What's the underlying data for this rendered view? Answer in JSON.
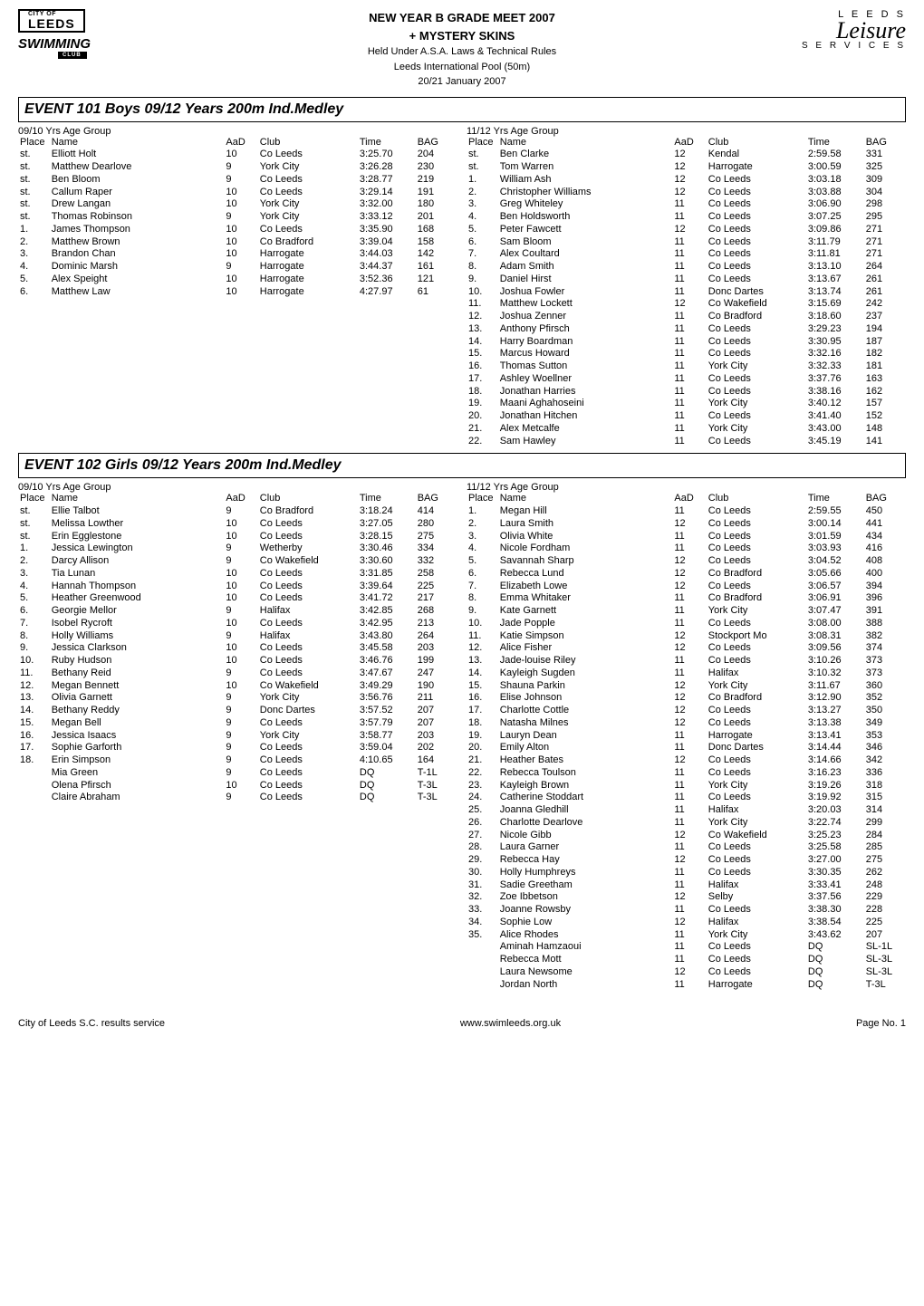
{
  "header": {
    "logo_left": {
      "city": "CITY OF",
      "leeds": "LEEDS",
      "swimming": "SWIMMING",
      "club": "CLUB"
    },
    "title": "NEW YEAR B GRADE MEET 2007",
    "subtitle": "+ MYSTERY SKINS",
    "line1": "Held Under A.S.A. Laws & Technical Rules",
    "line2": "Leeds International Pool (50m)",
    "line3": "20/21 January 2007",
    "logo_right": {
      "leeds": "L E E D S",
      "leisure": "Leisure",
      "services": "S E R V I C E S"
    }
  },
  "events": [
    {
      "title": "EVENT 101 Boys 09/12 Years 200m Ind.Medley",
      "columns": [
        {
          "group": "09/10 Yrs Age Group",
          "headers": {
            "place": "Place",
            "name": "Name",
            "aad": "AaD",
            "club": "Club",
            "time": "Time",
            "bag": "BAG"
          },
          "rows": [
            [
              "st.",
              "Elliott Holt",
              "10",
              "Co Leeds",
              "3:25.70",
              "204"
            ],
            [
              "st.",
              "Matthew Dearlove",
              "9",
              "York City",
              "3:26.28",
              "230"
            ],
            [
              "st.",
              "Ben Bloom",
              "9",
              "Co Leeds",
              "3:28.77",
              "219"
            ],
            [
              "st.",
              "Callum Raper",
              "10",
              "Co Leeds",
              "3:29.14",
              "191"
            ],
            [
              "st.",
              "Drew Langan",
              "10",
              "York City",
              "3:32.00",
              "180"
            ],
            [
              "st.",
              "Thomas Robinson",
              "9",
              "York City",
              "3:33.12",
              "201"
            ],
            [
              "1.",
              "James Thompson",
              "10",
              "Co Leeds",
              "3:35.90",
              "168"
            ],
            [
              "2.",
              "Matthew Brown",
              "10",
              "Co Bradford",
              "3:39.04",
              "158"
            ],
            [
              "3.",
              "Brandon Chan",
              "10",
              "Harrogate",
              "3:44.03",
              "142"
            ],
            [
              "4.",
              "Dominic Marsh",
              "9",
              "Harrogate",
              "3:44.37",
              "161"
            ],
            [
              "5.",
              "Alex Speight",
              "10",
              "Harrogate",
              "3:52.36",
              "121"
            ],
            [
              "6.",
              "Matthew Law",
              "10",
              "Harrogate",
              "4:27.97",
              "61"
            ]
          ]
        },
        {
          "group": "11/12 Yrs Age Group",
          "headers": {
            "place": "Place",
            "name": "Name",
            "aad": "AaD",
            "club": "Club",
            "time": "Time",
            "bag": "BAG"
          },
          "rows": [
            [
              "st.",
              "Ben Clarke",
              "12",
              "Kendal",
              "2:59.58",
              "331"
            ],
            [
              "st.",
              "Tom Warren",
              "12",
              "Harrogate",
              "3:00.59",
              "325"
            ],
            [
              "1.",
              "William Ash",
              "12",
              "Co Leeds",
              "3:03.18",
              "309"
            ],
            [
              "2.",
              "Christopher Williams",
              "12",
              "Co Leeds",
              "3:03.88",
              "304"
            ],
            [
              "3.",
              "Greg Whiteley",
              "11",
              "Co Leeds",
              "3:06.90",
              "298"
            ],
            [
              "4.",
              "Ben Holdsworth",
              "11",
              "Co Leeds",
              "3:07.25",
              "295"
            ],
            [
              "5.",
              "Peter Fawcett",
              "12",
              "Co Leeds",
              "3:09.86",
              "271"
            ],
            [
              "6.",
              "Sam Bloom",
              "11",
              "Co Leeds",
              "3:11.79",
              "271"
            ],
            [
              "7.",
              "Alex Coultard",
              "11",
              "Co Leeds",
              "3:11.81",
              "271"
            ],
            [
              "8.",
              "Adam Smith",
              "11",
              "Co Leeds",
              "3:13.10",
              "264"
            ],
            [
              "9.",
              "Daniel Hirst",
              "11",
              "Co Leeds",
              "3:13.67",
              "261"
            ],
            [
              "10.",
              "Joshua Fowler",
              "11",
              "Donc Dartes",
              "3:13.74",
              "261"
            ],
            [
              "11.",
              "Matthew Lockett",
              "12",
              "Co Wakefield",
              "3:15.69",
              "242"
            ],
            [
              "12.",
              "Joshua Zenner",
              "11",
              "Co Bradford",
              "3:18.60",
              "237"
            ],
            [
              "13.",
              "Anthony Pfirsch",
              "11",
              "Co Leeds",
              "3:29.23",
              "194"
            ],
            [
              "14.",
              "Harry Boardman",
              "11",
              "Co Leeds",
              "3:30.95",
              "187"
            ],
            [
              "15.",
              "Marcus Howard",
              "11",
              "Co Leeds",
              "3:32.16",
              "182"
            ],
            [
              "16.",
              "Thomas Sutton",
              "11",
              "York City",
              "3:32.33",
              "181"
            ],
            [
              "17.",
              "Ashley Woellner",
              "11",
              "Co Leeds",
              "3:37.76",
              "163"
            ],
            [
              "18.",
              "Jonathan Harries",
              "11",
              "Co Leeds",
              "3:38.16",
              "162"
            ],
            [
              "19.",
              "Maani Aghahoseini",
              "11",
              "York City",
              "3:40.12",
              "157"
            ],
            [
              "20.",
              "Jonathan Hitchen",
              "11",
              "Co Leeds",
              "3:41.40",
              "152"
            ],
            [
              "21.",
              "Alex Metcalfe",
              "11",
              "York City",
              "3:43.00",
              "148"
            ],
            [
              "22.",
              "Sam Hawley",
              "11",
              "Co Leeds",
              "3:45.19",
              "141"
            ]
          ]
        }
      ]
    },
    {
      "title": "EVENT 102 Girls 09/12 Years 200m Ind.Medley",
      "columns": [
        {
          "group": "09/10 Yrs Age Group",
          "headers": {
            "place": "Place",
            "name": "Name",
            "aad": "AaD",
            "club": "Club",
            "time": "Time",
            "bag": "BAG"
          },
          "rows": [
            [
              "st.",
              "Ellie Talbot",
              "9",
              "Co Bradford",
              "3:18.24",
              "414"
            ],
            [
              "st.",
              "Melissa Lowther",
              "10",
              "Co Leeds",
              "3:27.05",
              "280"
            ],
            [
              "st.",
              "Erin Egglestone",
              "10",
              "Co Leeds",
              "3:28.15",
              "275"
            ],
            [
              "1.",
              "Jessica Lewington",
              "9",
              "Wetherby",
              "3:30.46",
              "334"
            ],
            [
              "2.",
              "Darcy Allison",
              "9",
              "Co Wakefield",
              "3:30.60",
              "332"
            ],
            [
              "3.",
              "Tia Lunan",
              "10",
              "Co Leeds",
              "3:31.85",
              "258"
            ],
            [
              "4.",
              "Hannah Thompson",
              "10",
              "Co Leeds",
              "3:39.64",
              "225"
            ],
            [
              "5.",
              "Heather Greenwood",
              "10",
              "Co Leeds",
              "3:41.72",
              "217"
            ],
            [
              "6.",
              "Georgie Mellor",
              "9",
              "Halifax",
              "3:42.85",
              "268"
            ],
            [
              "7.",
              "Isobel Rycroft",
              "10",
              "Co Leeds",
              "3:42.95",
              "213"
            ],
            [
              "8.",
              "Holly Williams",
              "9",
              "Halifax",
              "3:43.80",
              "264"
            ],
            [
              "9.",
              "Jessica Clarkson",
              "10",
              "Co Leeds",
              "3:45.58",
              "203"
            ],
            [
              "10.",
              "Ruby Hudson",
              "10",
              "Co Leeds",
              "3:46.76",
              "199"
            ],
            [
              "11.",
              "Bethany Reid",
              "9",
              "Co Leeds",
              "3:47.67",
              "247"
            ],
            [
              "12.",
              "Megan Bennett",
              "10",
              "Co Wakefield",
              "3:49.29",
              "190"
            ],
            [
              "13.",
              "Olivia Garnett",
              "9",
              "York City",
              "3:56.76",
              "211"
            ],
            [
              "14.",
              "Bethany Reddy",
              "9",
              "Donc Dartes",
              "3:57.52",
              "207"
            ],
            [
              "15.",
              "Megan Bell",
              "9",
              "Co Leeds",
              "3:57.79",
              "207"
            ],
            [
              "16.",
              "Jessica Isaacs",
              "9",
              "York City",
              "3:58.77",
              "203"
            ],
            [
              "17.",
              "Sophie Garforth",
              "9",
              "Co Leeds",
              "3:59.04",
              "202"
            ],
            [
              "18.",
              "Erin Simpson",
              "9",
              "Co Leeds",
              "4:10.65",
              "164"
            ],
            [
              "",
              "Mia Green",
              "9",
              "Co Leeds",
              "DQ",
              "T-1L"
            ],
            [
              "",
              "Olena Pfirsch",
              "10",
              "Co Leeds",
              "DQ",
              "T-3L"
            ],
            [
              "",
              "Claire Abraham",
              "9",
              "Co Leeds",
              "DQ",
              "T-3L"
            ]
          ]
        },
        {
          "group": "11/12 Yrs Age Group",
          "headers": {
            "place": "Place",
            "name": "Name",
            "aad": "AaD",
            "club": "Club",
            "time": "Time",
            "bag": "BAG"
          },
          "rows": [
            [
              "1.",
              "Megan Hill",
              "11",
              "Co Leeds",
              "2:59.55",
              "450"
            ],
            [
              "2.",
              "Laura Smith",
              "12",
              "Co Leeds",
              "3:00.14",
              "441"
            ],
            [
              "3.",
              "Olivia White",
              "11",
              "Co Leeds",
              "3:01.59",
              "434"
            ],
            [
              "4.",
              "Nicole Fordham",
              "11",
              "Co Leeds",
              "3:03.93",
              "416"
            ],
            [
              "5.",
              "Savannah Sharp",
              "12",
              "Co Leeds",
              "3:04.52",
              "408"
            ],
            [
              "6.",
              "Rebecca Lund",
              "12",
              "Co Bradford",
              "3:05.66",
              "400"
            ],
            [
              "7.",
              "Elizabeth Lowe",
              "12",
              "Co Leeds",
              "3:06.57",
              "394"
            ],
            [
              "8.",
              "Emma Whitaker",
              "11",
              "Co Bradford",
              "3:06.91",
              "396"
            ],
            [
              "9.",
              "Kate Garnett",
              "11",
              "York City",
              "3:07.47",
              "391"
            ],
            [
              "10.",
              "Jade Popple",
              "11",
              "Co Leeds",
              "3:08.00",
              "388"
            ],
            [
              "11.",
              "Katie Simpson",
              "12",
              "Stockport Mo",
              "3:08.31",
              "382"
            ],
            [
              "12.",
              "Alice Fisher",
              "12",
              "Co Leeds",
              "3:09.56",
              "374"
            ],
            [
              "13.",
              "Jade-louise Riley",
              "11",
              "Co Leeds",
              "3:10.26",
              "373"
            ],
            [
              "14.",
              "Kayleigh Sugden",
              "11",
              "Halifax",
              "3:10.32",
              "373"
            ],
            [
              "15.",
              "Shauna Parkin",
              "12",
              "York City",
              "3:11.67",
              "360"
            ],
            [
              "16.",
              "Elise Johnson",
              "12",
              "Co Bradford",
              "3:12.90",
              "352"
            ],
            [
              "17.",
              "Charlotte Cottle",
              "12",
              "Co Leeds",
              "3:13.27",
              "350"
            ],
            [
              "18.",
              "Natasha Milnes",
              "12",
              "Co Leeds",
              "3:13.38",
              "349"
            ],
            [
              "19.",
              "Lauryn Dean",
              "11",
              "Harrogate",
              "3:13.41",
              "353"
            ],
            [
              "20.",
              "Emily Alton",
              "11",
              "Donc Dartes",
              "3:14.44",
              "346"
            ],
            [
              "21.",
              "Heather Bates",
              "12",
              "Co Leeds",
              "3:14.66",
              "342"
            ],
            [
              "22.",
              "Rebecca Toulson",
              "11",
              "Co Leeds",
              "3:16.23",
              "336"
            ],
            [
              "23.",
              "Kayleigh Brown",
              "11",
              "York City",
              "3:19.26",
              "318"
            ],
            [
              "24.",
              "Catherine Stoddart",
              "11",
              "Co Leeds",
              "3:19.92",
              "315"
            ],
            [
              "25.",
              "Joanna Gledhill",
              "11",
              "Halifax",
              "3:20.03",
              "314"
            ],
            [
              "26.",
              "Charlotte Dearlove",
              "11",
              "York City",
              "3:22.74",
              "299"
            ],
            [
              "27.",
              "Nicole Gibb",
              "12",
              "Co Wakefield",
              "3:25.23",
              "284"
            ],
            [
              "28.",
              "Laura Garner",
              "11",
              "Co Leeds",
              "3:25.58",
              "285"
            ],
            [
              "29.",
              "Rebecca Hay",
              "12",
              "Co Leeds",
              "3:27.00",
              "275"
            ],
            [
              "30.",
              "Holly Humphreys",
              "11",
              "Co Leeds",
              "3:30.35",
              "262"
            ],
            [
              "31.",
              "Sadie Greetham",
              "11",
              "Halifax",
              "3:33.41",
              "248"
            ],
            [
              "32.",
              "Zoe Ibbetson",
              "12",
              "Selby",
              "3:37.56",
              "229"
            ],
            [
              "33.",
              "Joanne Rowsby",
              "11",
              "Co Leeds",
              "3:38.30",
              "228"
            ],
            [
              "34.",
              "Sophie Low",
              "12",
              "Halifax",
              "3:38.54",
              "225"
            ],
            [
              "35.",
              "Alice Rhodes",
              "11",
              "York City",
              "3:43.62",
              "207"
            ],
            [
              "",
              "Aminah Hamzaoui",
              "11",
              "Co Leeds",
              "DQ",
              "SL-1L"
            ],
            [
              "",
              "Rebecca Mott",
              "11",
              "Co Leeds",
              "DQ",
              "SL-3L"
            ],
            [
              "",
              "Laura Newsome",
              "12",
              "Co Leeds",
              "DQ",
              "SL-3L"
            ],
            [
              "",
              "Jordan North",
              "11",
              "Harrogate",
              "DQ",
              "T-3L"
            ]
          ]
        }
      ]
    }
  ],
  "footer": {
    "left": "City of Leeds S.C. results service",
    "center": "www.swimleeds.org.uk",
    "right": "Page No. 1"
  }
}
